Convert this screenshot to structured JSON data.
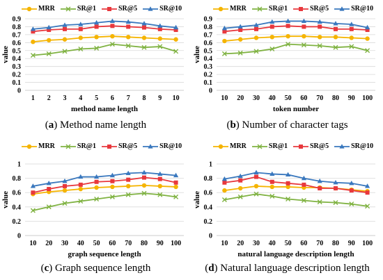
{
  "chart_data": [
    {
      "type": "line",
      "x": [
        1,
        2,
        3,
        4,
        5,
        6,
        7,
        8,
        9,
        10
      ],
      "series": [
        {
          "name": "MRR",
          "values": [
            0.61,
            0.63,
            0.64,
            0.66,
            0.67,
            0.68,
            0.67,
            0.66,
            0.65,
            0.64
          ]
        },
        {
          "name": "SR@1",
          "values": [
            0.44,
            0.46,
            0.49,
            0.52,
            0.53,
            0.58,
            0.56,
            0.54,
            0.55,
            0.49
          ]
        },
        {
          "name": "SR@5",
          "values": [
            0.74,
            0.76,
            0.77,
            0.77,
            0.8,
            0.81,
            0.8,
            0.79,
            0.77,
            0.76
          ]
        },
        {
          "name": "SR@10",
          "values": [
            0.77,
            0.79,
            0.82,
            0.83,
            0.85,
            0.87,
            0.86,
            0.84,
            0.81,
            0.79
          ]
        }
      ],
      "xlabel": "method name length",
      "ylabel": "value",
      "ylim": [
        0,
        0.9
      ],
      "yticks": [
        0,
        0.1,
        0.2,
        0.3,
        0.4,
        0.5,
        0.6,
        0.7,
        0.8,
        0.9
      ],
      "caption_letter": "(a)",
      "caption_text": " Method name length",
      "legend": "top"
    },
    {
      "type": "line",
      "x": [
        10,
        20,
        30,
        40,
        50,
        60,
        70,
        80,
        90,
        100
      ],
      "series": [
        {
          "name": "MRR",
          "values": [
            0.62,
            0.64,
            0.66,
            0.67,
            0.68,
            0.68,
            0.67,
            0.67,
            0.66,
            0.65
          ]
        },
        {
          "name": "SR@1",
          "values": [
            0.46,
            0.47,
            0.49,
            0.52,
            0.58,
            0.57,
            0.56,
            0.54,
            0.55,
            0.5
          ]
        },
        {
          "name": "SR@5",
          "values": [
            0.74,
            0.76,
            0.77,
            0.8,
            0.81,
            0.8,
            0.8,
            0.77,
            0.77,
            0.76
          ]
        },
        {
          "name": "SR@10",
          "values": [
            0.78,
            0.8,
            0.82,
            0.86,
            0.87,
            0.87,
            0.86,
            0.84,
            0.83,
            0.79
          ]
        }
      ],
      "xlabel": "token number",
      "ylabel": "value",
      "ylim": [
        0,
        0.9
      ],
      "yticks": [
        0,
        0.1,
        0.2,
        0.3,
        0.4,
        0.5,
        0.6,
        0.7,
        0.8,
        0.9
      ],
      "caption_letter": "(b)",
      "caption_text": " Number of character tags",
      "legend": "top"
    },
    {
      "type": "line",
      "x": [
        10,
        20,
        30,
        40,
        50,
        60,
        70,
        80,
        90,
        100
      ],
      "series": [
        {
          "name": "MRR",
          "values": [
            0.58,
            0.61,
            0.63,
            0.65,
            0.67,
            0.68,
            0.69,
            0.7,
            0.69,
            0.68
          ]
        },
        {
          "name": "SR@1",
          "values": [
            0.35,
            0.4,
            0.45,
            0.48,
            0.51,
            0.54,
            0.57,
            0.59,
            0.57,
            0.54
          ]
        },
        {
          "name": "SR@5",
          "values": [
            0.6,
            0.65,
            0.69,
            0.71,
            0.75,
            0.76,
            0.78,
            0.81,
            0.79,
            0.74
          ]
        },
        {
          "name": "SR@10",
          "values": [
            0.69,
            0.73,
            0.76,
            0.82,
            0.82,
            0.84,
            0.87,
            0.88,
            0.86,
            0.84
          ]
        }
      ],
      "xlabel": "graph sequence length",
      "ylabel": "value",
      "ylim": [
        0,
        1
      ],
      "yticks": [
        0,
        0.2,
        0.4,
        0.6,
        0.8,
        1
      ],
      "caption_letter": "(c)",
      "caption_text": " Graph sequence length",
      "legend": "top"
    },
    {
      "type": "line",
      "x": [
        10,
        20,
        30,
        40,
        50,
        60,
        70,
        80,
        90,
        100
      ],
      "series": [
        {
          "name": "MRR",
          "values": [
            0.63,
            0.66,
            0.69,
            0.68,
            0.68,
            0.67,
            0.67,
            0.66,
            0.64,
            0.62
          ]
        },
        {
          "name": "SR@1",
          "values": [
            0.5,
            0.54,
            0.58,
            0.55,
            0.51,
            0.49,
            0.47,
            0.46,
            0.44,
            0.41
          ]
        },
        {
          "name": "SR@5",
          "values": [
            0.74,
            0.77,
            0.82,
            0.75,
            0.73,
            0.71,
            0.66,
            0.66,
            0.63,
            0.6
          ]
        },
        {
          "name": "SR@10",
          "values": [
            0.79,
            0.83,
            0.88,
            0.86,
            0.85,
            0.8,
            0.76,
            0.74,
            0.73,
            0.69
          ]
        }
      ],
      "xlabel": "natural language description length",
      "ylabel": "value",
      "ylim": [
        0,
        1
      ],
      "yticks": [
        0,
        0.2,
        0.4,
        0.6,
        0.8,
        1
      ],
      "caption_letter": "(d)",
      "caption_text": " Natural language description length",
      "legend": "top"
    }
  ],
  "series_style": [
    {
      "name": "MRR",
      "color": "#F5B400",
      "marker": "circle"
    },
    {
      "name": "SR@1",
      "color": "#7FB241",
      "marker": "x"
    },
    {
      "name": "SR@5",
      "color": "#E8383D",
      "marker": "square"
    },
    {
      "name": "SR@10",
      "color": "#3A78BE",
      "marker": "triangle"
    }
  ]
}
